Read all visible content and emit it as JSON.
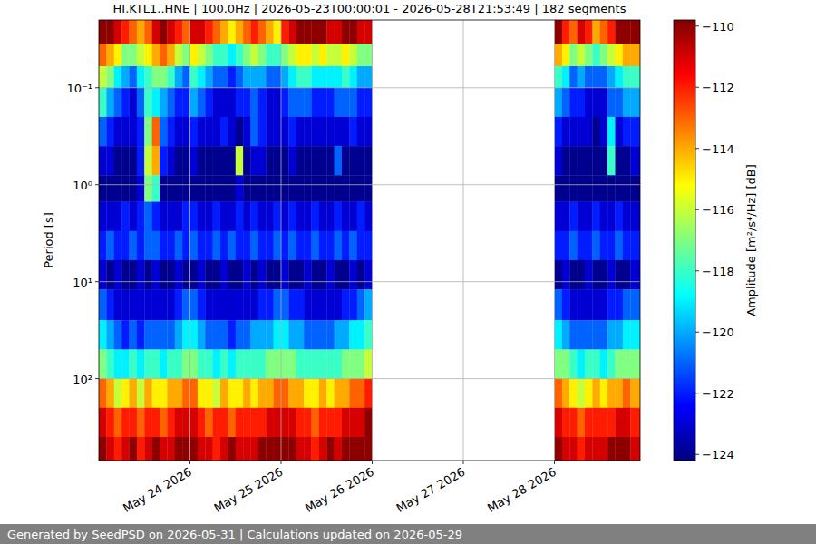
{
  "chart_data": {
    "type": "heatmap",
    "title": "HI.KTL1..HNE | 100.0Hz | 2026-05-23T00:00:01 - 2026-05-28T21:53:49 | 182 segments",
    "caption": "Generated by SeedPSD on 2026-05-31 | Calculations updated on 2026-05-29",
    "y_label": "Period [s]",
    "log": "y",
    "grid": true,
    "color": "jet",
    "xlim": [
      "2026-05-23T00:00",
      "2026-05-28T22:34"
    ],
    "xticks": [
      {
        "value": "2026-05-24T00:00",
        "label": "May 24 2026"
      },
      {
        "value": "2026-05-25T00:00",
        "label": "May 25 2026"
      },
      {
        "value": "2026-05-26T00:00",
        "label": "May 26 2026"
      },
      {
        "value": "2026-05-27T00:00",
        "label": "May 27 2026"
      },
      {
        "value": "2026-05-28T00:00",
        "label": "May 28 2026"
      }
    ],
    "ylim": [
      0.02,
      700
    ],
    "yticks": [
      {
        "value": 0.1,
        "label": "10⁻¹"
      },
      {
        "value": 1,
        "label": "10⁰"
      },
      {
        "value": 10,
        "label": "10¹"
      },
      {
        "value": 100,
        "label": "10²"
      }
    ],
    "x": [
      "2026-05-23T00:00",
      "2026-05-23T02:00",
      "2026-05-23T04:00",
      "2026-05-23T06:00",
      "2026-05-23T08:00",
      "2026-05-23T10:00",
      "2026-05-23T12:00",
      "2026-05-23T14:00",
      "2026-05-23T16:00",
      "2026-05-23T18:00",
      "2026-05-23T20:00",
      "2026-05-23T22:00",
      "2026-05-24T00:00",
      "2026-05-24T02:00",
      "2026-05-24T04:00",
      "2026-05-24T06:00",
      "2026-05-24T08:00",
      "2026-05-24T10:00",
      "2026-05-24T12:00",
      "2026-05-24T14:00",
      "2026-05-24T16:00",
      "2026-05-24T18:00",
      "2026-05-24T20:00",
      "2026-05-24T22:00",
      "2026-05-25T00:00",
      "2026-05-25T02:00",
      "2026-05-25T04:00",
      "2026-05-25T06:00",
      "2026-05-25T08:00",
      "2026-05-25T10:00",
      "2026-05-25T12:00",
      "2026-05-25T14:00",
      "2026-05-25T16:00",
      "2026-05-25T18:00",
      "2026-05-25T20:00",
      "2026-05-25T22:00",
      "2026-05-28T00:00",
      "2026-05-28T02:00",
      "2026-05-28T04:00",
      "2026-05-28T06:00",
      "2026-05-28T08:00",
      "2026-05-28T10:00",
      "2026-05-28T12:00",
      "2026-05-28T14:00",
      "2026-05-28T16:00",
      "2026-05-28T18:00",
      "2026-05-28T20:00"
    ],
    "x_end": [
      "2026-05-23T02:00",
      "2026-05-23T04:00",
      "2026-05-23T06:00",
      "2026-05-23T08:00",
      "2026-05-23T10:00",
      "2026-05-23T12:00",
      "2026-05-23T14:00",
      "2026-05-23T16:00",
      "2026-05-23T18:00",
      "2026-05-23T20:00",
      "2026-05-23T22:00",
      "2026-05-24T00:00",
      "2026-05-24T02:00",
      "2026-05-24T04:00",
      "2026-05-24T06:00",
      "2026-05-24T08:00",
      "2026-05-24T10:00",
      "2026-05-24T12:00",
      "2026-05-24T14:00",
      "2026-05-24T16:00",
      "2026-05-24T18:00",
      "2026-05-24T20:00",
      "2026-05-24T22:00",
      "2026-05-25T00:00",
      "2026-05-25T02:00",
      "2026-05-25T04:00",
      "2026-05-25T06:00",
      "2026-05-25T08:00",
      "2026-05-25T10:00",
      "2026-05-25T12:00",
      "2026-05-25T14:00",
      "2026-05-25T16:00",
      "2026-05-25T18:00",
      "2026-05-25T20:00",
      "2026-05-25T22:00",
      "2026-05-26T00:00",
      "2026-05-28T02:00",
      "2026-05-28T04:00",
      "2026-05-28T06:00",
      "2026-05-28T08:00",
      "2026-05-28T10:00",
      "2026-05-28T12:00",
      "2026-05-28T14:00",
      "2026-05-28T16:00",
      "2026-05-28T18:00",
      "2026-05-28T20:00",
      "2026-05-28T22:34"
    ],
    "y_edges": [
      0.02,
      0.035,
      0.06,
      0.1,
      0.2,
      0.4,
      0.8,
      1.5,
      3,
      6,
      12,
      25,
      50,
      100,
      200,
      400,
      700
    ],
    "values": [
      [
        -110,
        -110,
        -111,
        -112,
        -113,
        -114,
        -113,
        -111,
        -110,
        -111,
        -112,
        -113,
        -111,
        -111,
        -112,
        -113,
        -114,
        -115,
        -114,
        -113,
        -112,
        -113,
        -114,
        -115,
        -112,
        -111,
        -110,
        -110,
        -110,
        -110,
        -111,
        -111,
        -110,
        -110,
        -111,
        -111,
        -110,
        -112,
        -113,
        -111,
        -112,
        -114,
        -113,
        -112,
        -110,
        -110,
        -110
      ],
      [
        -113,
        -114,
        -115,
        -117,
        -117,
        -116,
        -115,
        -114,
        -113,
        -114,
        -116,
        -117,
        -115,
        -116,
        -117,
        -118,
        -118,
        -119,
        -118,
        -117,
        -116,
        -117,
        -118,
        -118,
        -117,
        -116,
        -115,
        -115,
        -116,
        -115,
        -116,
        -116,
        -115,
        -116,
        -117,
        -117,
        -114,
        -115,
        -117,
        -116,
        -117,
        -118,
        -117,
        -116,
        -115,
        -114,
        -114
      ],
      [
        -116,
        -117,
        -119,
        -120,
        -121,
        -119,
        -118,
        -117,
        -117,
        -118,
        -120,
        -121,
        -118,
        -119,
        -120,
        -121,
        -121,
        -122,
        -121,
        -120,
        -120,
        -120,
        -121,
        -121,
        -120,
        -119,
        -118,
        -118,
        -119,
        -119,
        -119,
        -119,
        -118,
        -119,
        -120,
        -120,
        -118,
        -119,
        -121,
        -120,
        -121,
        -121,
        -121,
        -120,
        -119,
        -118,
        -118
      ],
      [
        -118,
        -120,
        -121,
        -122,
        -123,
        -121,
        -118,
        -119,
        -120,
        -121,
        -122,
        -122,
        -120,
        -121,
        -122,
        -123,
        -123,
        -123,
        -122,
        -122,
        -121,
        -122,
        -123,
        -123,
        -122,
        -121,
        -121,
        -121,
        -122,
        -122,
        -122,
        -121,
        -121,
        -121,
        -122,
        -122,
        -120,
        -121,
        -122,
        -122,
        -123,
        -123,
        -123,
        -121,
        -121,
        -120,
        -120
      ],
      [
        -121,
        -122,
        -123,
        -123,
        -123,
        -122,
        -117,
        -113,
        -121,
        -122,
        -123,
        -123,
        -122,
        -123,
        -123,
        -123,
        -122,
        -123,
        -124,
        -123,
        -121,
        -122,
        -123,
        -123,
        -123,
        -122,
        -123,
        -123,
        -123,
        -123,
        -123,
        -123,
        -123,
        -122,
        -123,
        -123,
        -122,
        -123,
        -123,
        -123,
        -123,
        -124,
        -123,
        -119,
        -123,
        -122,
        -122
      ],
      [
        -123,
        -123,
        -124,
        -124,
        -124,
        -122,
        -116,
        -114,
        -122,
        -123,
        -124,
        -124,
        -123,
        -124,
        -124,
        -124,
        -124,
        -124,
        -116,
        -124,
        -123,
        -123,
        -124,
        -124,
        -124,
        -123,
        -124,
        -124,
        -124,
        -124,
        -124,
        -121,
        -124,
        -124,
        -124,
        -124,
        -123,
        -124,
        -124,
        -124,
        -124,
        -124,
        -124,
        -118,
        -124,
        -124,
        -123
      ],
      [
        -124,
        -124,
        -124,
        -124,
        -124,
        -123,
        -117,
        -118,
        -124,
        -124,
        -124,
        -124,
        -124,
        -124,
        -124,
        -124,
        -124,
        -124,
        -123,
        -124,
        -124,
        -124,
        -124,
        -124,
        -124,
        -124,
        -124,
        -124,
        -124,
        -124,
        -124,
        -124,
        -124,
        -124,
        -124,
        -124,
        -124,
        -124,
        -124,
        -124,
        -124,
        -124,
        -124,
        -124,
        -124,
        -124,
        -124
      ],
      [
        -123,
        -123,
        -123,
        -122,
        -123,
        -122,
        -121,
        -122,
        -123,
        -123,
        -123,
        -122,
        -122,
        -123,
        -123,
        -122,
        -123,
        -123,
        -122,
        -123,
        -122,
        -123,
        -123,
        -122,
        -123,
        -122,
        -123,
        -123,
        -122,
        -123,
        -123,
        -122,
        -123,
        -123,
        -122,
        -123,
        -123,
        -123,
        -122,
        -123,
        -123,
        -122,
        -123,
        -123,
        -122,
        -123,
        -123
      ],
      [
        -122,
        -121,
        -122,
        -122,
        -121,
        -122,
        -121,
        -121,
        -122,
        -122,
        -121,
        -122,
        -121,
        -122,
        -122,
        -121,
        -122,
        -121,
        -122,
        -122,
        -121,
        -122,
        -122,
        -121,
        -122,
        -121,
        -122,
        -122,
        -121,
        -122,
        -122,
        -121,
        -122,
        -121,
        -122,
        -122,
        -122,
        -122,
        -121,
        -122,
        -122,
        -121,
        -122,
        -122,
        -121,
        -122,
        -122
      ],
      [
        -123,
        -124,
        -123,
        -124,
        -124,
        -123,
        -124,
        -123,
        -124,
        -124,
        -123,
        -124,
        -124,
        -123,
        -124,
        -124,
        -123,
        -124,
        -124,
        -123,
        -124,
        -123,
        -124,
        -124,
        -123,
        -124,
        -124,
        -123,
        -124,
        -124,
        -123,
        -124,
        -124,
        -123,
        -124,
        -123,
        -124,
        -123,
        -124,
        -124,
        -123,
        -124,
        -124,
        -123,
        -124,
        -124,
        -123
      ],
      [
        -121,
        -122,
        -123,
        -123,
        -123,
        -123,
        -123,
        -123,
        -123,
        -123,
        -122,
        -121,
        -121,
        -122,
        -123,
        -123,
        -123,
        -123,
        -123,
        -123,
        -123,
        -122,
        -122,
        -121,
        -121,
        -122,
        -122,
        -123,
        -123,
        -123,
        -123,
        -123,
        -122,
        -122,
        -121,
        -120,
        -121,
        -122,
        -123,
        -123,
        -123,
        -123,
        -123,
        -122,
        -122,
        -121,
        -121
      ],
      [
        -119,
        -120,
        -121,
        -122,
        -121,
        -122,
        -121,
        -121,
        -121,
        -121,
        -120,
        -119,
        -119,
        -120,
        -121,
        -121,
        -121,
        -122,
        -121,
        -121,
        -120,
        -120,
        -120,
        -119,
        -119,
        -120,
        -120,
        -121,
        -121,
        -121,
        -121,
        -120,
        -120,
        -119,
        -119,
        -118,
        -119,
        -120,
        -121,
        -121,
        -121,
        -121,
        -121,
        -120,
        -120,
        -119,
        -119
      ],
      [
        -117,
        -118,
        -119,
        -119,
        -118,
        -119,
        -118,
        -118,
        -119,
        -118,
        -118,
        -117,
        -117,
        -118,
        -118,
        -119,
        -118,
        -119,
        -118,
        -118,
        -118,
        -118,
        -117,
        -117,
        -117,
        -117,
        -118,
        -118,
        -118,
        -118,
        -118,
        -118,
        -117,
        -117,
        -117,
        -116,
        -117,
        -117,
        -118,
        -119,
        -118,
        -118,
        -119,
        -118,
        -117,
        -117,
        -117
      ],
      [
        -113,
        -114,
        -116,
        -115,
        -114,
        -116,
        -114,
        -115,
        -115,
        -114,
        -114,
        -113,
        -113,
        -115,
        -115,
        -116,
        -114,
        -115,
        -115,
        -114,
        -115,
        -114,
        -114,
        -113,
        -113,
        -114,
        -114,
        -115,
        -115,
        -114,
        -115,
        -114,
        -114,
        -113,
        -113,
        -112,
        -113,
        -114,
        -115,
        -116,
        -115,
        -114,
        -115,
        -114,
        -114,
        -113,
        -114
      ],
      [
        -111,
        -112,
        -113,
        -112,
        -112,
        -113,
        -112,
        -112,
        -113,
        -112,
        -111,
        -111,
        -111,
        -112,
        -113,
        -112,
        -112,
        -113,
        -112,
        -112,
        -112,
        -112,
        -111,
        -111,
        -111,
        -111,
        -112,
        -112,
        -113,
        -112,
        -112,
        -112,
        -111,
        -111,
        -111,
        -110,
        -111,
        -112,
        -112,
        -113,
        -112,
        -112,
        -112,
        -112,
        -111,
        -111,
        -112
      ],
      [
        -110,
        -111,
        -112,
        -111,
        -110,
        -112,
        -111,
        -110,
        -111,
        -111,
        -110,
        -110,
        -110,
        -111,
        -111,
        -112,
        -111,
        -110,
        -111,
        -111,
        -111,
        -110,
        -110,
        -110,
        -110,
        -110,
        -111,
        -111,
        -112,
        -111,
        -110,
        -111,
        -110,
        -110,
        -110,
        -110,
        -110,
        -111,
        -111,
        -112,
        -111,
        -111,
        -111,
        -110,
        -110,
        -110,
        -111
      ]
    ],
    "colorbar": {
      "label": "Amplitude [m²/s⁴/Hz] [dB]",
      "range": [
        -124.2,
        -109.8
      ],
      "ticks": [
        {
          "value": -124,
          "label": "−124"
        },
        {
          "value": -122,
          "label": "−122"
        },
        {
          "value": -120,
          "label": "−120"
        },
        {
          "value": -118,
          "label": "−118"
        },
        {
          "value": -116,
          "label": "−116"
        },
        {
          "value": -114,
          "label": "−114"
        },
        {
          "value": -112,
          "label": "−112"
        },
        {
          "value": -110,
          "label": "−110"
        }
      ]
    }
  }
}
